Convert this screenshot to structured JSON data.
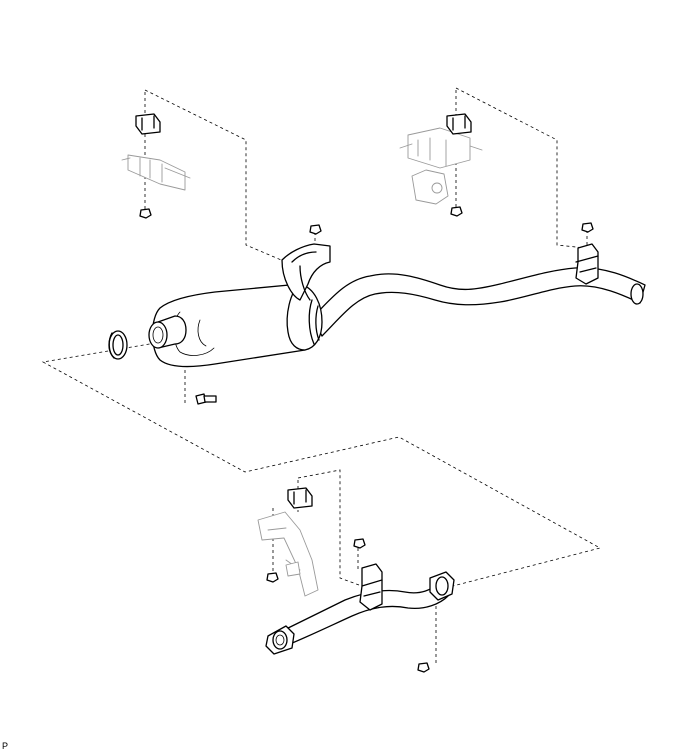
{
  "figure": {
    "code_label": "P",
    "colors": {
      "line": "#000000",
      "background_part": "#9a9a9a",
      "paper": "#ffffff"
    },
    "parts": [
      "exhaust-tail-pipe-with-muffler",
      "exhaust-front-pipe",
      "gasket",
      "exhaust-pipe-support",
      "nut",
      "bolt"
    ]
  }
}
